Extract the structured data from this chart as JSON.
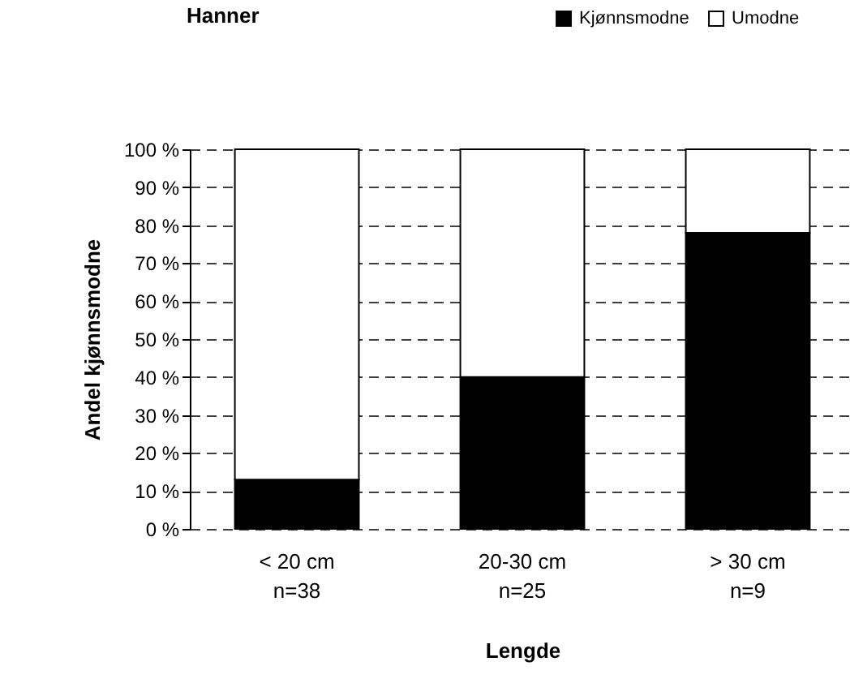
{
  "chart_data": {
    "type": "bar",
    "stacked": true,
    "title": "Hanner",
    "xlabel": "Lengde",
    "ylabel": "Andel kjønnsmodne",
    "categories": [
      "< 20 cm\nn=38",
      "20-30 cm\nn=25",
      "> 30 cm\nn=9"
    ],
    "series": [
      {
        "name": "Kjønnsmodne",
        "color": "#000000",
        "values": [
          13,
          40,
          78
        ]
      },
      {
        "name": "Umodne",
        "color": "#ffffff",
        "values": [
          87,
          60,
          22
        ]
      }
    ],
    "ylim": [
      0,
      100
    ],
    "yticks": [
      {
        "value": 0,
        "label": "0 %"
      },
      {
        "value": 10,
        "label": "10 %"
      },
      {
        "value": 20,
        "label": "20 %"
      },
      {
        "value": 30,
        "label": "30 %"
      },
      {
        "value": 40,
        "label": "40 %"
      },
      {
        "value": 50,
        "label": "50 %"
      },
      {
        "value": 60,
        "label": "60 %"
      },
      {
        "value": 70,
        "label": "70 %"
      },
      {
        "value": 80,
        "label": "80 %"
      },
      {
        "value": 90,
        "label": "90 %"
      },
      {
        "value": 100,
        "label": "100 %"
      }
    ],
    "grid": "y",
    "legend": "top right"
  }
}
